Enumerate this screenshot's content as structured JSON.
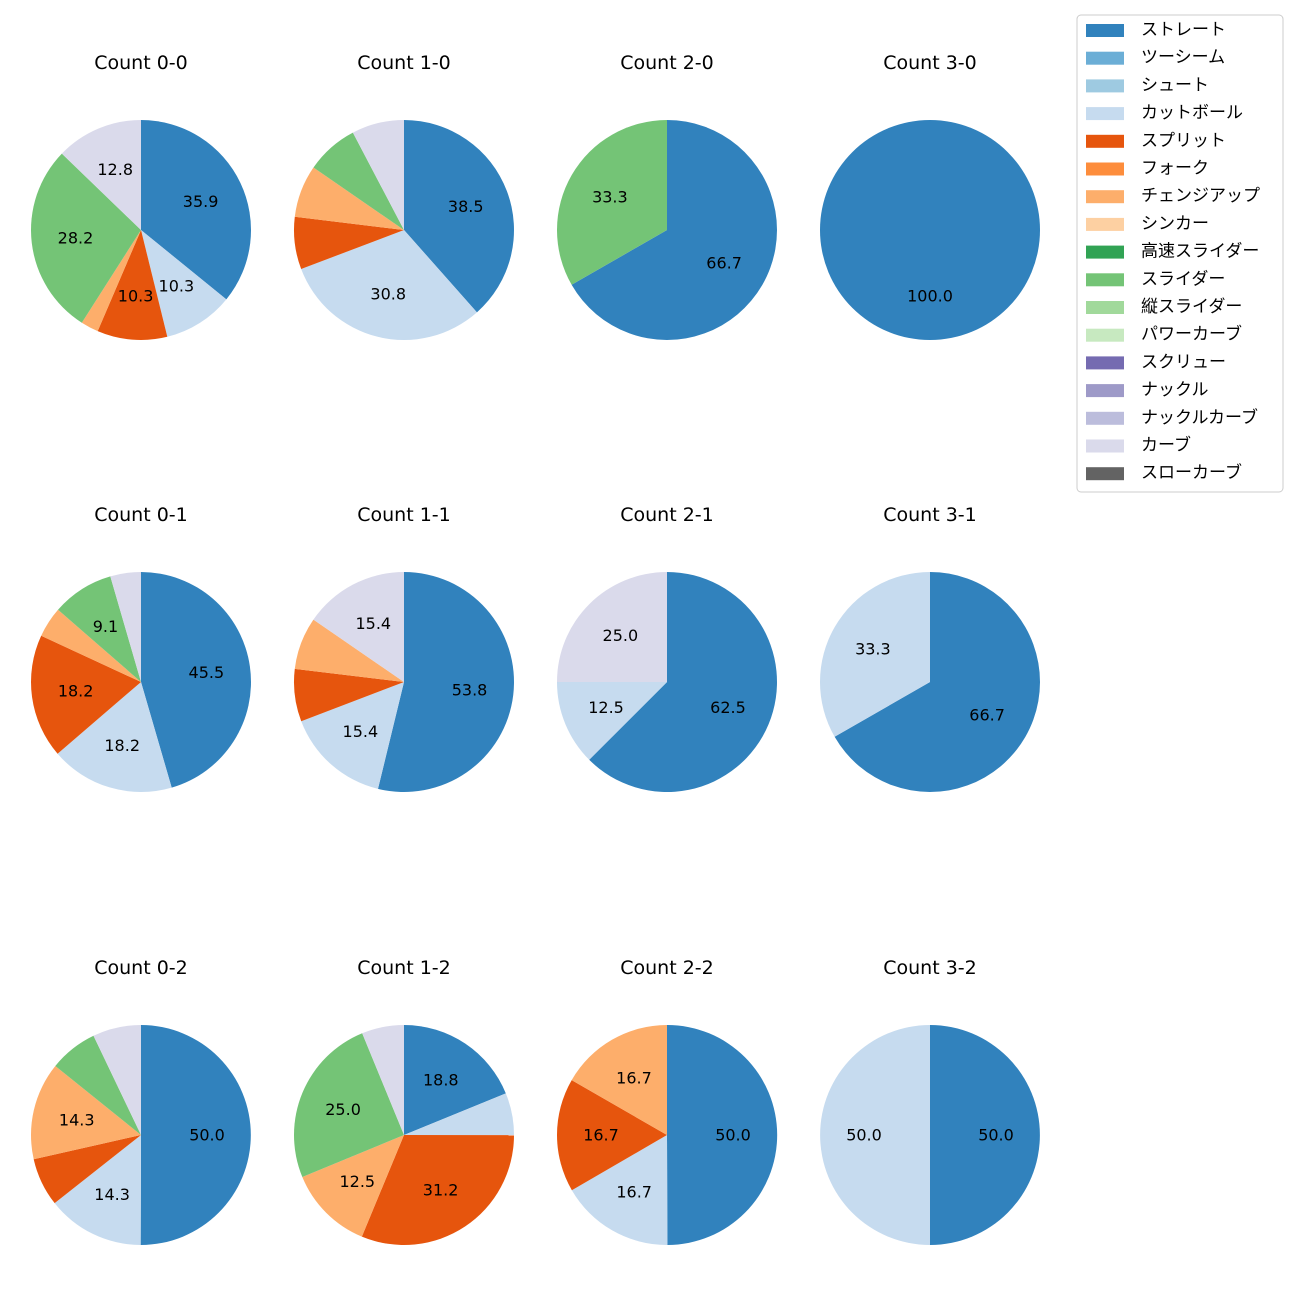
{
  "legend": [
    {
      "name": "ストレート",
      "color": "#3182bd"
    },
    {
      "name": "ツーシーム",
      "color": "#6baed6"
    },
    {
      "name": "シュート",
      "color": "#9ecae1"
    },
    {
      "name": "カットボール",
      "color": "#c6dbef"
    },
    {
      "name": "スプリット",
      "color": "#e6550d"
    },
    {
      "name": "フォーク",
      "color": "#fd8d3c"
    },
    {
      "name": "チェンジアップ",
      "color": "#fdae6b"
    },
    {
      "name": "シンカー",
      "color": "#fdd0a2"
    },
    {
      "name": "高速スライダー",
      "color": "#31a354"
    },
    {
      "name": "スライダー",
      "color": "#74c476"
    },
    {
      "name": "縦スライダー",
      "color": "#a1d99b"
    },
    {
      "name": "パワーカーブ",
      "color": "#c7e9c0"
    },
    {
      "name": "スクリュー",
      "color": "#756bb1"
    },
    {
      "name": "ナックル",
      "color": "#9e9ac8"
    },
    {
      "name": "ナックルカーブ",
      "color": "#bcbddc"
    },
    {
      "name": "カーブ",
      "color": "#dadaeb"
    },
    {
      "name": "スローカーブ",
      "color": "#636363"
    }
  ],
  "chart_data": [
    {
      "type": "pie",
      "title": "Count 0-0",
      "slices": [
        {
          "name": "ストレート",
          "value": 35.9,
          "label": "35.9"
        },
        {
          "name": "カットボール",
          "value": 10.3,
          "label": "10.3"
        },
        {
          "name": "スプリット",
          "value": 10.3,
          "label": "10.3"
        },
        {
          "name": "チェンジアップ",
          "value": 2.6,
          "label": ""
        },
        {
          "name": "スライダー",
          "value": 28.2,
          "label": "28.2"
        },
        {
          "name": "カーブ",
          "value": 12.8,
          "label": "12.8"
        }
      ]
    },
    {
      "type": "pie",
      "title": "Count 1-0",
      "slices": [
        {
          "name": "ストレート",
          "value": 38.5,
          "label": "38.5"
        },
        {
          "name": "カットボール",
          "value": 30.8,
          "label": "30.8"
        },
        {
          "name": "スプリット",
          "value": 7.7,
          "label": ""
        },
        {
          "name": "チェンジアップ",
          "value": 7.7,
          "label": ""
        },
        {
          "name": "スライダー",
          "value": 7.7,
          "label": ""
        },
        {
          "name": "カーブ",
          "value": 7.7,
          "label": ""
        }
      ]
    },
    {
      "type": "pie",
      "title": "Count 2-0",
      "slices": [
        {
          "name": "ストレート",
          "value": 66.7,
          "label": "66.7"
        },
        {
          "name": "スライダー",
          "value": 33.3,
          "label": "33.3"
        }
      ]
    },
    {
      "type": "pie",
      "title": "Count 3-0",
      "slices": [
        {
          "name": "ストレート",
          "value": 100.0,
          "label": "100.0"
        }
      ]
    },
    {
      "type": "pie",
      "title": "Count 0-1",
      "slices": [
        {
          "name": "ストレート",
          "value": 45.5,
          "label": "45.5"
        },
        {
          "name": "カットボール",
          "value": 18.2,
          "label": "18.2"
        },
        {
          "name": "スプリット",
          "value": 18.2,
          "label": "18.2"
        },
        {
          "name": "チェンジアップ",
          "value": 4.5,
          "label": ""
        },
        {
          "name": "スライダー",
          "value": 9.1,
          "label": "9.1"
        },
        {
          "name": "カーブ",
          "value": 4.5,
          "label": ""
        }
      ]
    },
    {
      "type": "pie",
      "title": "Count 1-1",
      "slices": [
        {
          "name": "ストレート",
          "value": 53.8,
          "label": "53.8"
        },
        {
          "name": "カットボール",
          "value": 15.4,
          "label": "15.4"
        },
        {
          "name": "スプリット",
          "value": 7.7,
          "label": ""
        },
        {
          "name": "チェンジアップ",
          "value": 7.7,
          "label": ""
        },
        {
          "name": "カーブ",
          "value": 15.4,
          "label": "15.4"
        }
      ]
    },
    {
      "type": "pie",
      "title": "Count 2-1",
      "slices": [
        {
          "name": "ストレート",
          "value": 62.5,
          "label": "62.5"
        },
        {
          "name": "カットボール",
          "value": 12.5,
          "label": "12.5"
        },
        {
          "name": "カーブ",
          "value": 25.0,
          "label": "25.0"
        }
      ]
    },
    {
      "type": "pie",
      "title": "Count 3-1",
      "slices": [
        {
          "name": "ストレート",
          "value": 66.7,
          "label": "66.7"
        },
        {
          "name": "カットボール",
          "value": 33.3,
          "label": "33.3"
        }
      ]
    },
    {
      "type": "pie",
      "title": "Count 0-2",
      "slices": [
        {
          "name": "ストレート",
          "value": 50.0,
          "label": "50.0"
        },
        {
          "name": "カットボール",
          "value": 14.3,
          "label": "14.3"
        },
        {
          "name": "スプリット",
          "value": 7.1,
          "label": ""
        },
        {
          "name": "チェンジアップ",
          "value": 14.3,
          "label": "14.3"
        },
        {
          "name": "スライダー",
          "value": 7.1,
          "label": ""
        },
        {
          "name": "カーブ",
          "value": 7.1,
          "label": ""
        }
      ]
    },
    {
      "type": "pie",
      "title": "Count 1-2",
      "slices": [
        {
          "name": "ストレート",
          "value": 18.8,
          "label": "18.8"
        },
        {
          "name": "カットボール",
          "value": 6.2,
          "label": ""
        },
        {
          "name": "スプリット",
          "value": 31.2,
          "label": "31.2"
        },
        {
          "name": "チェンジアップ",
          "value": 12.5,
          "label": "12.5"
        },
        {
          "name": "スライダー",
          "value": 25.0,
          "label": "25.0"
        },
        {
          "name": "カーブ",
          "value": 6.2,
          "label": ""
        }
      ]
    },
    {
      "type": "pie",
      "title": "Count 2-2",
      "slices": [
        {
          "name": "ストレート",
          "value": 50.0,
          "label": "50.0"
        },
        {
          "name": "カットボール",
          "value": 16.7,
          "label": "16.7"
        },
        {
          "name": "スプリット",
          "value": 16.7,
          "label": "16.7"
        },
        {
          "name": "チェンジアップ",
          "value": 16.7,
          "label": "16.7"
        }
      ]
    },
    {
      "type": "pie",
      "title": "Count 3-2",
      "slices": [
        {
          "name": "ストレート",
          "value": 50.0,
          "label": "50.0"
        },
        {
          "name": "カットボール",
          "value": 50.0,
          "label": "50.0"
        }
      ]
    }
  ]
}
